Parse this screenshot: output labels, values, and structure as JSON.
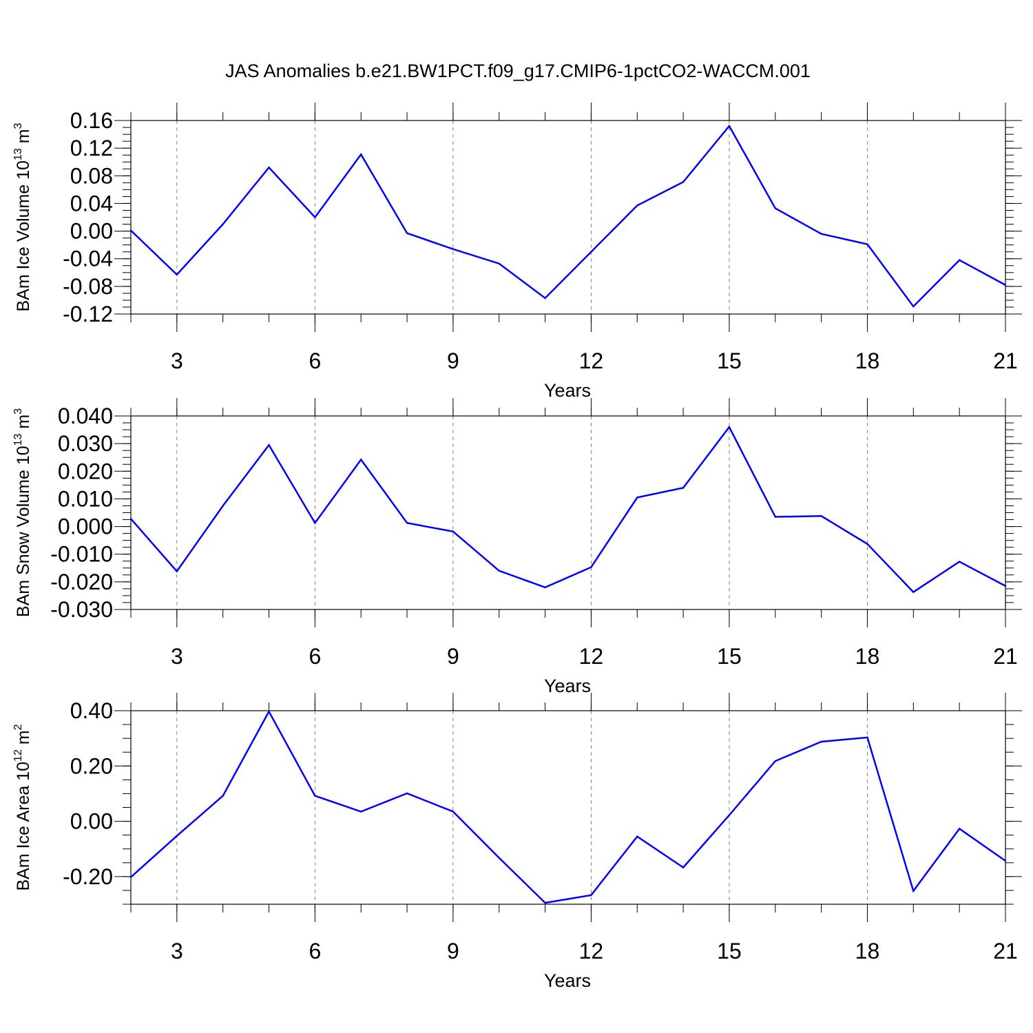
{
  "title": "JAS Anomalies b.e21.BW1PCT.f09_g17.CMIP6-1pctCO2-WACCM.001",
  "colors": {
    "line": "#0000ff",
    "axis": "#000000",
    "grid": "#808080"
  },
  "chart_data": [
    {
      "type": "line",
      "ylabel_main": "BAm Ice Volume 10",
      "ylabel_exp": "13",
      "ylabel_unit": " m",
      "ylabel_unit_exp": "3",
      "xlabel": "Years",
      "xlim": [
        2,
        21
      ],
      "ylim": [
        -0.12,
        0.16
      ],
      "xticks": [
        3,
        6,
        9,
        12,
        15,
        18,
        21
      ],
      "yticks": [
        0.16,
        0.12,
        0.08,
        0.04,
        0.0,
        -0.04,
        -0.08,
        -0.12
      ],
      "ytick_labels": [
        "0.16",
        "0.12",
        "0.08",
        "0.04",
        "0.00",
        "-0.04",
        "-0.08",
        "-0.12"
      ],
      "ytick_minor_step": 0.01,
      "x_grid": true,
      "x": [
        2,
        3,
        4,
        5,
        6,
        7,
        8,
        9,
        10,
        11,
        12,
        13,
        14,
        15,
        16,
        17,
        18,
        19,
        20,
        21
      ],
      "y": [
        0.001,
        -0.063,
        0.01,
        0.092,
        0.02,
        0.111,
        -0.003,
        -0.026,
        -0.047,
        -0.097,
        -0.03,
        0.037,
        0.071,
        0.152,
        0.033,
        -0.004,
        -0.019,
        -0.109,
        -0.042,
        -0.078
      ]
    },
    {
      "type": "line",
      "ylabel_main": "BAm Snow Volume 10",
      "ylabel_exp": "13",
      "ylabel_unit": " m",
      "ylabel_unit_exp": "3",
      "xlabel": "Years",
      "xlim": [
        2,
        21
      ],
      "ylim": [
        -0.03,
        0.04
      ],
      "xticks": [
        3,
        6,
        9,
        12,
        15,
        18,
        21
      ],
      "yticks": [
        0.04,
        0.03,
        0.02,
        0.01,
        0.0,
        -0.01,
        -0.02,
        -0.03
      ],
      "ytick_labels": [
        "0.040",
        "0.030",
        "0.020",
        "0.010",
        "0.000",
        "-0.010",
        "-0.020",
        "-0.030"
      ],
      "ytick_minor_step": 0.0025,
      "x_grid": true,
      "x": [
        2,
        3,
        4,
        5,
        6,
        7,
        8,
        9,
        10,
        11,
        12,
        13,
        14,
        15,
        16,
        17,
        18,
        19,
        20,
        21
      ],
      "y": [
        0.0028,
        -0.0162,
        0.0075,
        0.0295,
        0.0013,
        0.0242,
        0.0013,
        -0.0018,
        -0.016,
        -0.022,
        -0.0147,
        0.0105,
        0.014,
        0.036,
        0.0035,
        0.0038,
        -0.0063,
        -0.0237,
        -0.0127,
        -0.0215
      ]
    },
    {
      "type": "line",
      "ylabel_main": "BAm Ice Area 10",
      "ylabel_exp": "12",
      "ylabel_unit": " m",
      "ylabel_unit_exp": "2",
      "xlabel": "Years",
      "xlim": [
        2,
        21
      ],
      "ylim": [
        -0.3,
        0.4
      ],
      "xticks": [
        3,
        6,
        9,
        12,
        15,
        18,
        21
      ],
      "yticks": [
        0.4,
        0.2,
        0.0,
        -0.2
      ],
      "ytick_labels": [
        "0.40",
        "0.20",
        "0.00",
        "-0.20"
      ],
      "ytick_minor_step": 0.05,
      "x_grid": true,
      "x": [
        2,
        3,
        4,
        5,
        6,
        7,
        8,
        9,
        10,
        11,
        12,
        13,
        14,
        15,
        16,
        17,
        18,
        19,
        20,
        21
      ],
      "y": [
        -0.202,
        -0.053,
        0.092,
        0.397,
        0.092,
        0.035,
        0.101,
        0.035,
        -0.132,
        -0.295,
        -0.267,
        -0.055,
        -0.167,
        0.022,
        0.218,
        0.288,
        0.303,
        -0.252,
        -0.027,
        -0.143
      ]
    }
  ]
}
